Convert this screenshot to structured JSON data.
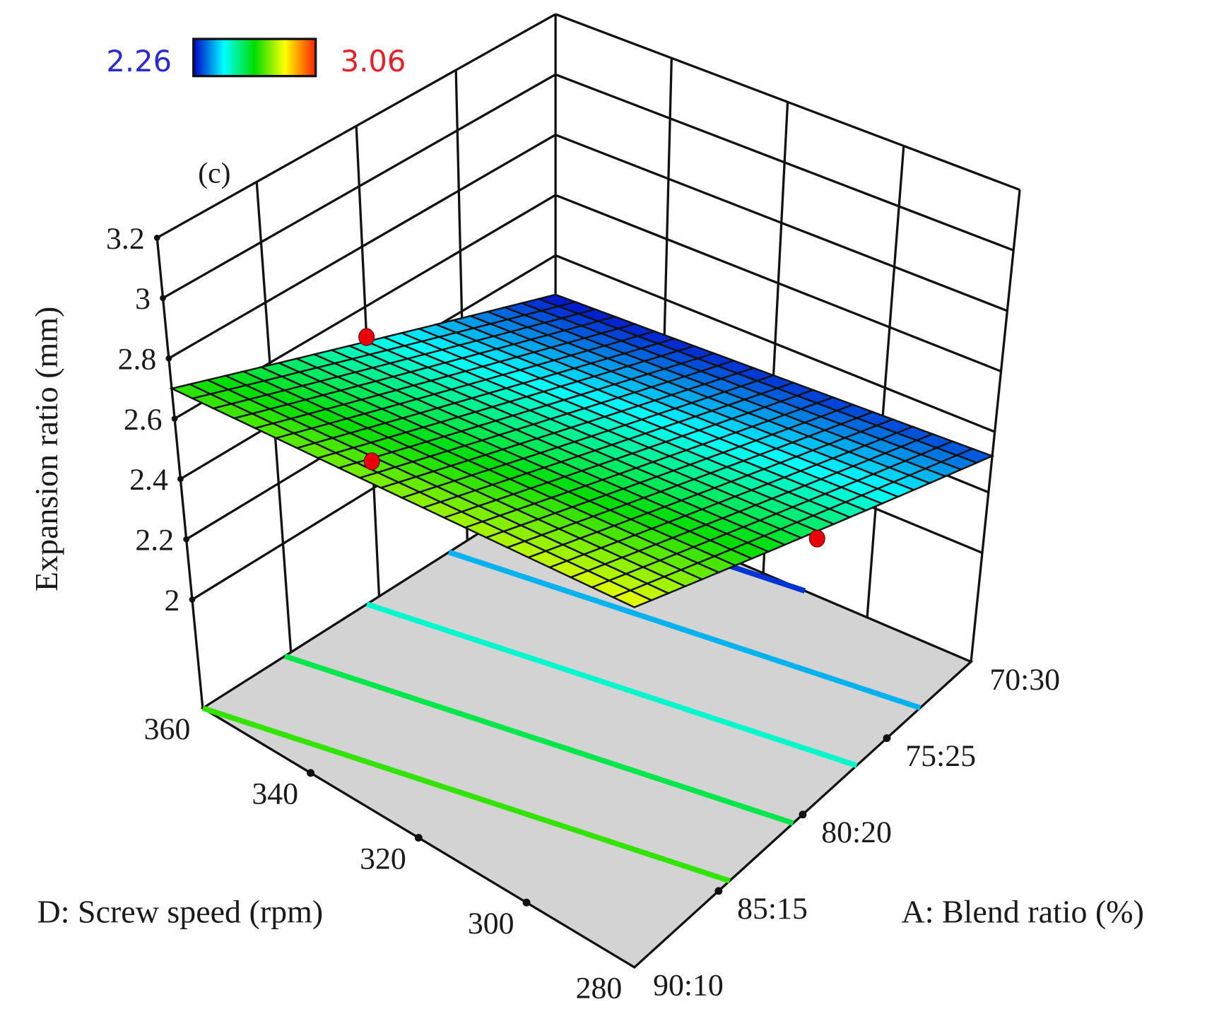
{
  "chart_data": {
    "type": "surface3d",
    "panel_label": "(c)",
    "zlabel": "Expansion ratio (mm)",
    "xlabel": "A: Blend ratio (%)",
    "ylabel": "D: Screw speed (rpm)",
    "x_ticks": [
      "90:10",
      "85:15",
      "80:20",
      "75:25",
      "70:30"
    ],
    "y_ticks": [
      "280",
      "300",
      "320",
      "340",
      "360"
    ],
    "z_ticks": [
      "2",
      "2.2",
      "2.4",
      "2.6",
      "2.8",
      "3",
      "3.2"
    ],
    "z_tick_values": [
      2.0,
      2.2,
      2.4,
      2.6,
      2.8,
      3.0,
      3.2
    ],
    "zlim": [
      2.0,
      3.2
    ],
    "colorbar": {
      "min_label": "2.26",
      "max_label": "3.06",
      "min": 2.26,
      "max": 3.06,
      "min_color": "#2a2ad0",
      "max_color": "#e8202a",
      "colormap": "jet"
    },
    "surface_corners": [
      {
        "A": "90:10",
        "D": 280,
        "z": 2.85
      },
      {
        "A": "90:10",
        "D": 360,
        "z": 2.7
      },
      {
        "A": "70:30",
        "D": 280,
        "z": 2.32
      },
      {
        "A": "70:30",
        "D": 360,
        "z": 2.27
      }
    ],
    "contour_levels": [
      2.7,
      2.6,
      2.5,
      2.4,
      2.3
    ],
    "design_points": [
      {
        "A_percent": 80,
        "D": 360,
        "z": 2.5
      },
      {
        "A_percent": 88,
        "D": 332,
        "z": 2.68
      },
      {
        "A_percent": 80,
        "D": 280,
        "z": 2.56
      }
    ],
    "floor_color": "#d3d3d3",
    "point_color": "#e8000b"
  }
}
